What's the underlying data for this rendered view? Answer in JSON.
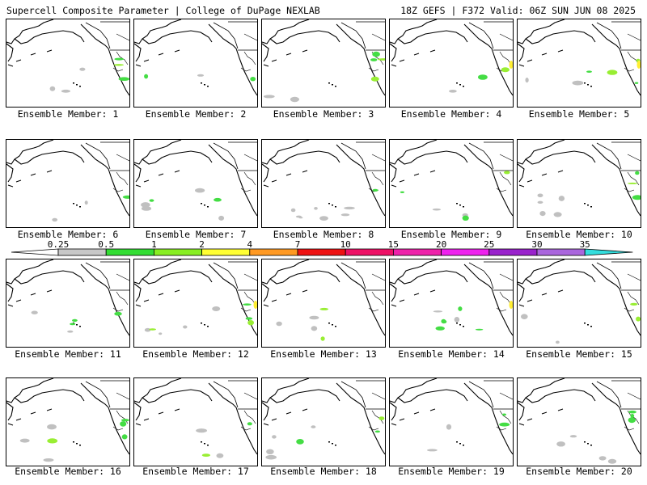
{
  "header": {
    "title": "Supercell Composite Parameter | College of DuPage NEXLAB",
    "valid": "18Z GEFS | F372 Valid: 06Z SUN JUN 08 2025"
  },
  "members": [
    "Ensemble Member: 1",
    "Ensemble Member: 2",
    "Ensemble Member: 3",
    "Ensemble Member: 4",
    "Ensemble Member: 5",
    "Ensemble Member: 6",
    "Ensemble Member: 7",
    "Ensemble Member: 8",
    "Ensemble Member: 9",
    "Ensemble Member: 10",
    "Ensemble Member: 11",
    "Ensemble Member: 12",
    "Ensemble Member: 13",
    "Ensemble Member: 14",
    "Ensemble Member: 15",
    "Ensemble Member: 16",
    "Ensemble Member: 17",
    "Ensemble Member: 18",
    "Ensemble Member: 19",
    "Ensemble Member: 20"
  ],
  "colorbar": {
    "labels": [
      "0.25",
      "0.5",
      "1",
      "2",
      "4",
      "7",
      "10",
      "15",
      "20",
      "25",
      "30",
      "35"
    ],
    "colors": [
      "#c8c8c8",
      "#33dd33",
      "#88ee22",
      "#ffff33",
      "#ff9922",
      "#ee1111",
      "#ee1166",
      "#ee22aa",
      "#ee22ee",
      "#9922cc",
      "#aa66dd",
      "#33dddd"
    ]
  },
  "palette": {
    "gray": "#c0c0c0",
    "green": "#44dd44",
    "lime": "#99ee33",
    "yellow": "#ffee33"
  }
}
